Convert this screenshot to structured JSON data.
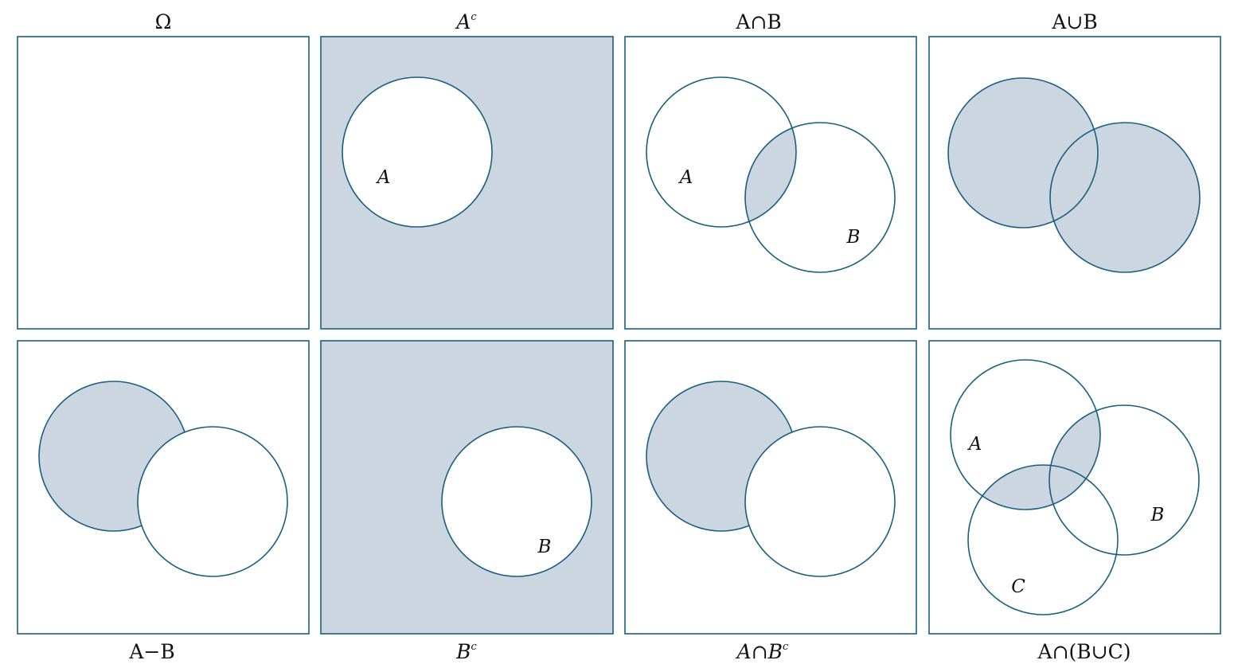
{
  "colors": {
    "stroke": "#1a5f7f",
    "shade": "#cbd6e0",
    "background": "#ffffff"
  },
  "panels": [
    {
      "id": "omega",
      "caption": "Ω",
      "labels": []
    },
    {
      "id": "a-complement",
      "caption": "A^c",
      "labels": [
        "A"
      ]
    },
    {
      "id": "a-intersect-b",
      "caption": "A∩B",
      "labels": [
        "A",
        "B"
      ]
    },
    {
      "id": "a-union-b",
      "caption": "A∪B",
      "labels": []
    },
    {
      "id": "a-minus-b",
      "caption": "A−B",
      "labels": []
    },
    {
      "id": "b-complement",
      "caption": "B^c",
      "labels": [
        "B"
      ]
    },
    {
      "id": "a-intersect-b-complement",
      "caption": "A∩B^c",
      "labels": []
    },
    {
      "id": "a-intersect-b-union-c",
      "caption": "A∩(B∪C)",
      "labels": [
        "A",
        "B",
        "C"
      ]
    }
  ]
}
